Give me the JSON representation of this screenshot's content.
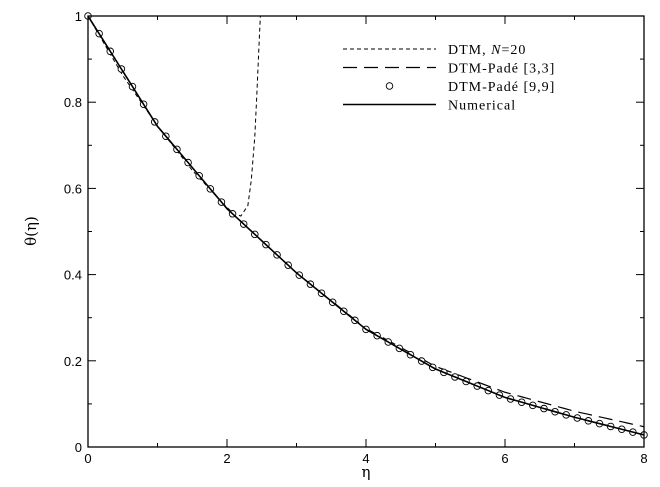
{
  "chart_data": {
    "type": "line",
    "title": "",
    "xlabel": "η",
    "ylabel": "θ(η)",
    "xlim": [
      0,
      8
    ],
    "ylim": [
      0,
      1
    ],
    "xticks": [
      0,
      2,
      4,
      6,
      8
    ],
    "yticks": [
      0,
      0.2,
      0.4,
      0.6,
      0.8,
      1
    ],
    "xtick_labels": [
      "0",
      "2",
      "4",
      "6",
      "8"
    ],
    "ytick_labels": [
      "0",
      "0.2",
      "0.4",
      "0.6",
      "0.8",
      "1"
    ],
    "grid": false,
    "legend_position": "top-right",
    "series": [
      {
        "legend_parts": [
          "DTM, ",
          "N",
          "=20"
        ],
        "style": "short-dash",
        "x": [
          0,
          0.5,
          1.0,
          1.5,
          2.0,
          2.1,
          2.2,
          2.3,
          2.35,
          2.4,
          2.43,
          2.46,
          2.48
        ],
        "y": [
          1.0,
          0.862,
          0.745,
          0.642,
          0.556,
          0.541,
          0.536,
          0.56,
          0.62,
          0.72,
          0.82,
          0.93,
          1.0
        ]
      },
      {
        "name": "DTM-Padé [3,3]",
        "style": "long-dash",
        "x": [
          0,
          1,
          2,
          3,
          4,
          5,
          6,
          7,
          8
        ],
        "y": [
          1.0,
          0.744,
          0.553,
          0.404,
          0.275,
          0.187,
          0.127,
          0.083,
          0.047
        ]
      },
      {
        "name": "DTM-Padé [9,9]",
        "style": "circles",
        "x": [
          0,
          8
        ],
        "y": [
          1.0,
          0.028
        ]
      },
      {
        "name": "Numerical",
        "style": "solid",
        "x": [
          0,
          1,
          2,
          3,
          4,
          5,
          6,
          7,
          8
        ],
        "y": [
          1.0,
          0.744,
          0.553,
          0.404,
          0.273,
          0.181,
          0.115,
          0.069,
          0.028
        ]
      }
    ]
  }
}
